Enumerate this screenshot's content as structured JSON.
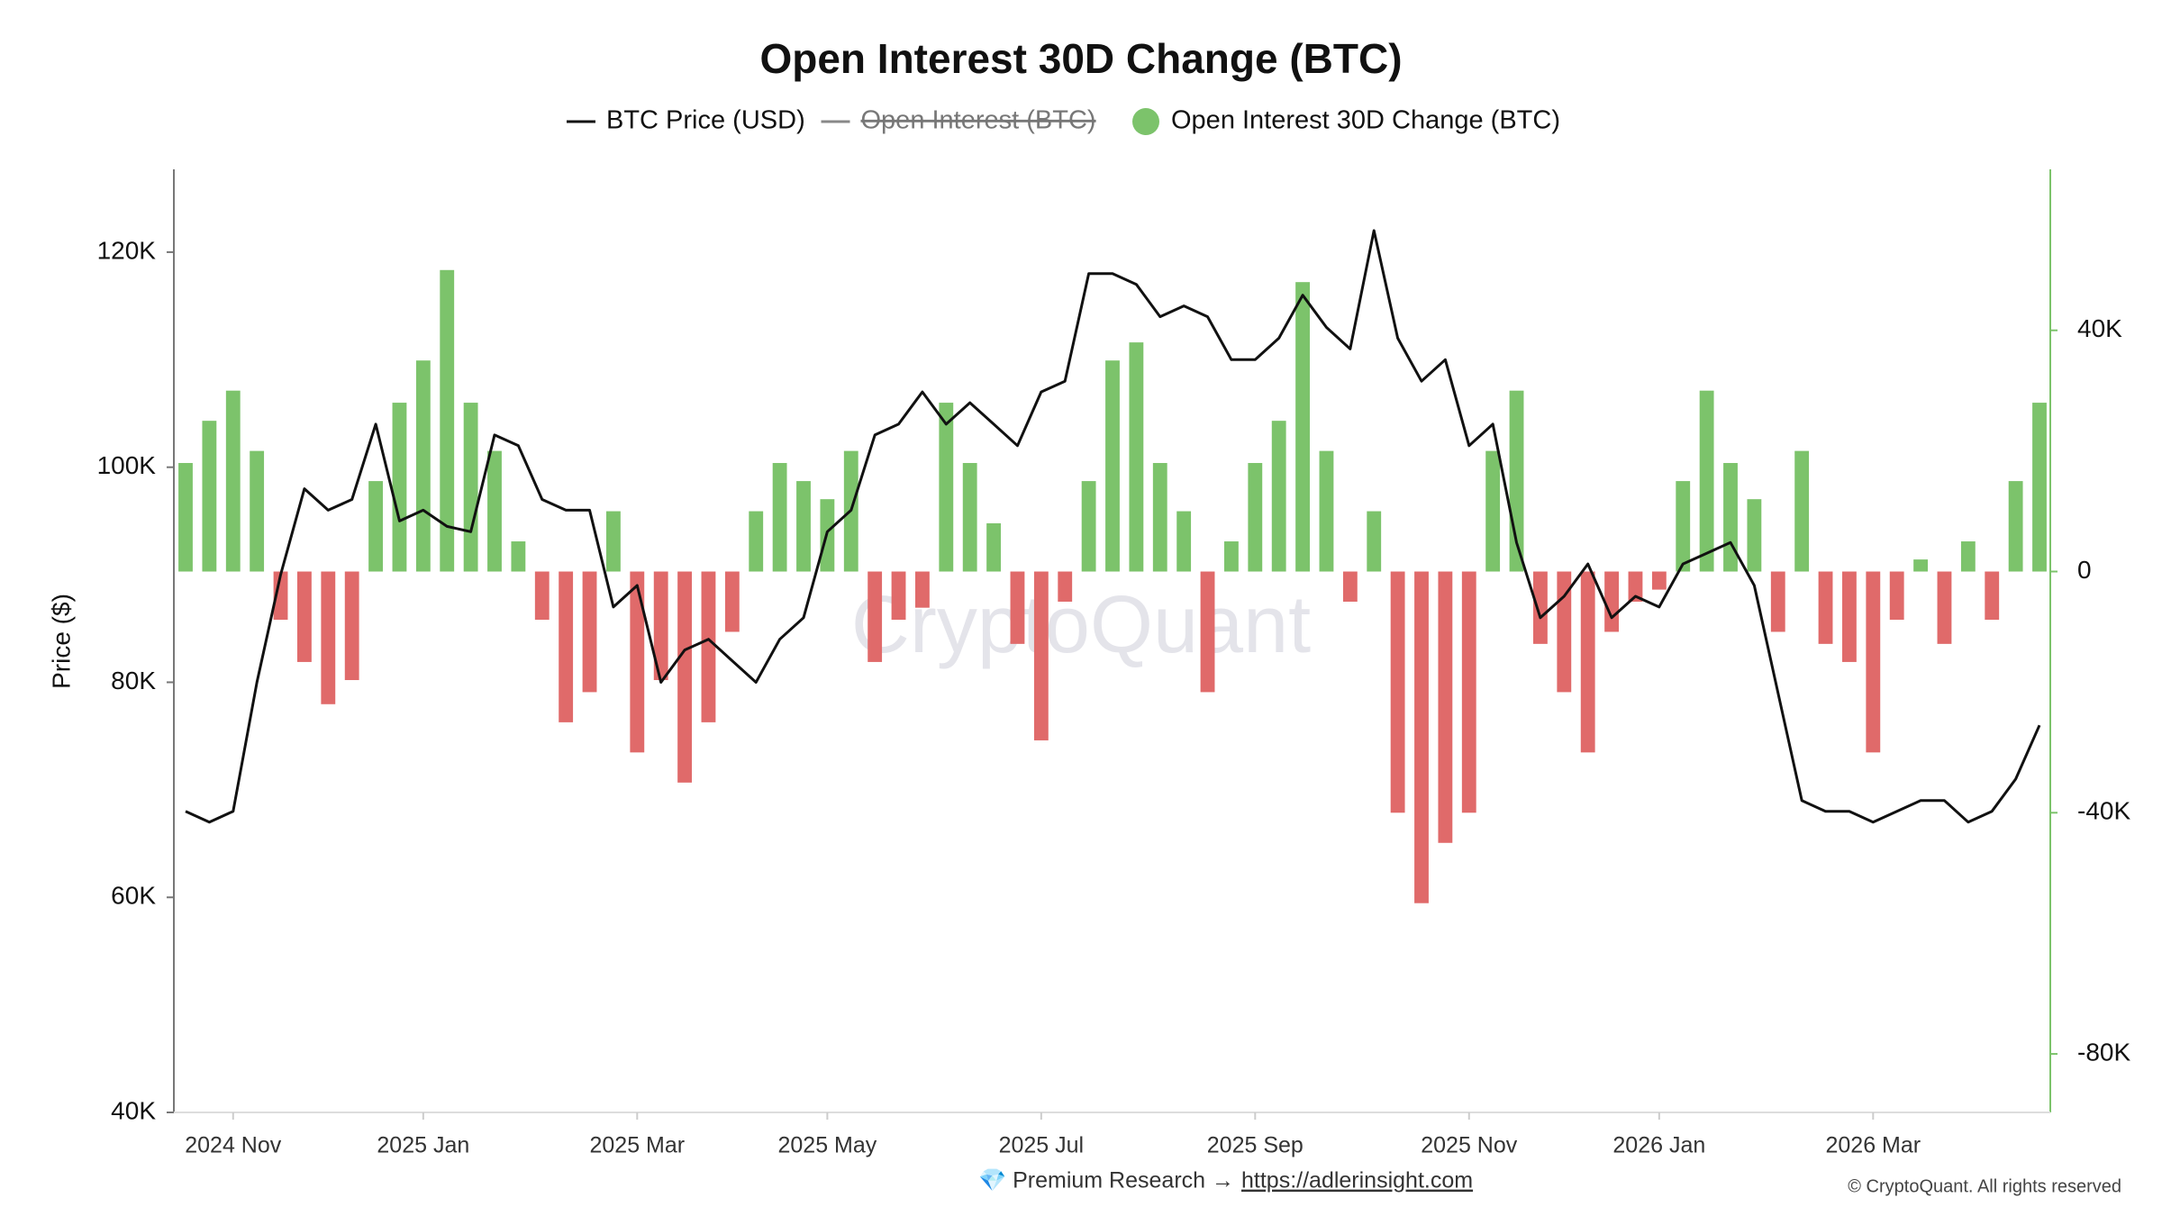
{
  "chart_data": {
    "type": "combo",
    "title": "Open Interest 30D Change (BTC)",
    "y_label": "Price ($)",
    "watermark": "CryptoQuant",
    "footer": {
      "text": "💎 Premium Research →",
      "link": "https://adlerinsight.com"
    },
    "copyright": "© CryptoQuant. All rights reserved",
    "categories": [
      null,
      null,
      "2024 Nov",
      null,
      null,
      null,
      null,
      null,
      null,
      null,
      "2025 Jan",
      null,
      null,
      null,
      null,
      null,
      null,
      null,
      null,
      "2025 Mar",
      null,
      null,
      null,
      null,
      null,
      null,
      null,
      "2025 May",
      null,
      null,
      null,
      null,
      null,
      null,
      null,
      null,
      "2025 Jul",
      null,
      null,
      null,
      null,
      null,
      null,
      null,
      null,
      "2025 Sep",
      null,
      null,
      null,
      null,
      null,
      null,
      null,
      null,
      "2025 Nov",
      null,
      null,
      null,
      null,
      null,
      null,
      null,
      "2026 Jan",
      null,
      null,
      null,
      null,
      null,
      null,
      null,
      null,
      "2026 Mar",
      null,
      null,
      null,
      null,
      null,
      null,
      null
    ],
    "series": [
      {
        "name": "BTC Price (USD)",
        "type": "line",
        "color": "#111111",
        "values": [
          68000,
          67000,
          68000,
          80000,
          90000,
          98000,
          96000,
          97000,
          104000,
          95000,
          96000,
          94500,
          94000,
          103000,
          102000,
          97000,
          96000,
          96000,
          87000,
          89000,
          80000,
          83000,
          84000,
          82000,
          80000,
          84000,
          86000,
          94000,
          96000,
          103000,
          104000,
          107000,
          104000,
          106000,
          104000,
          102000,
          107000,
          108000,
          118000,
          118000,
          117000,
          114000,
          115000,
          114000,
          110000,
          110000,
          112000,
          116000,
          113000,
          111000,
          122000,
          112000,
          108000,
          110000,
          102000,
          104000,
          93000,
          86000,
          88000,
          91000,
          86000,
          88000,
          87000,
          91000,
          92000,
          93000,
          89000,
          79000,
          69000,
          68000,
          68000,
          67000,
          68000,
          69000,
          69000,
          67000,
          68000,
          71000,
          76000
        ]
      },
      {
        "name": "Open Interest 30D Change (BTC)",
        "type": "bar",
        "axis": "y2",
        "color": "#7cc36b",
        "negative_color": "#e06a6a",
        "values": [
          18000,
          25000,
          30000,
          20000,
          -8000,
          -15000,
          -22000,
          -18000,
          15000,
          28000,
          35000,
          50000,
          28000,
          20000,
          5000,
          -8000,
          -25000,
          -20000,
          10000,
          -30000,
          -18000,
          -35000,
          -25000,
          -10000,
          10000,
          18000,
          15000,
          12000,
          20000,
          -15000,
          -8000,
          -6000,
          28000,
          18000,
          8000,
          -12000,
          -28000,
          -5000,
          15000,
          35000,
          38000,
          18000,
          10000,
          -20000,
          5000,
          18000,
          25000,
          48000,
          20000,
          -5000,
          10000,
          -40000,
          -55000,
          -45000,
          -40000,
          20000,
          30000,
          -12000,
          -20000,
          -30000,
          -10000,
          -5000,
          -3000,
          15000,
          30000,
          18000,
          12000,
          -10000,
          20000,
          -12000,
          -15000,
          -30000,
          -8000,
          2000,
          -12000,
          5000,
          -8000,
          15000,
          28000
        ]
      }
    ],
    "hidden_series": {
      "name": "Open Interest (BTC)",
      "color": "#888888"
    },
    "ylim": [
      40000,
      127700
    ],
    "yticks": [
      {
        "value": 40000,
        "label": "40K"
      },
      {
        "value": 60000,
        "label": "60K"
      },
      {
        "value": 80000,
        "label": "80K"
      },
      {
        "value": 100000,
        "label": "100K"
      },
      {
        "value": 120000,
        "label": "120K"
      }
    ],
    "y2lim": [
      -89700,
      66700
    ],
    "y2ticks": [
      {
        "value": -80000,
        "label": "-80K"
      },
      {
        "value": -40000,
        "label": "-40K"
      },
      0,
      {
        "value": 40000,
        "label": "40K"
      }
    ],
    "y2_axis_color": "#7cc36b"
  }
}
